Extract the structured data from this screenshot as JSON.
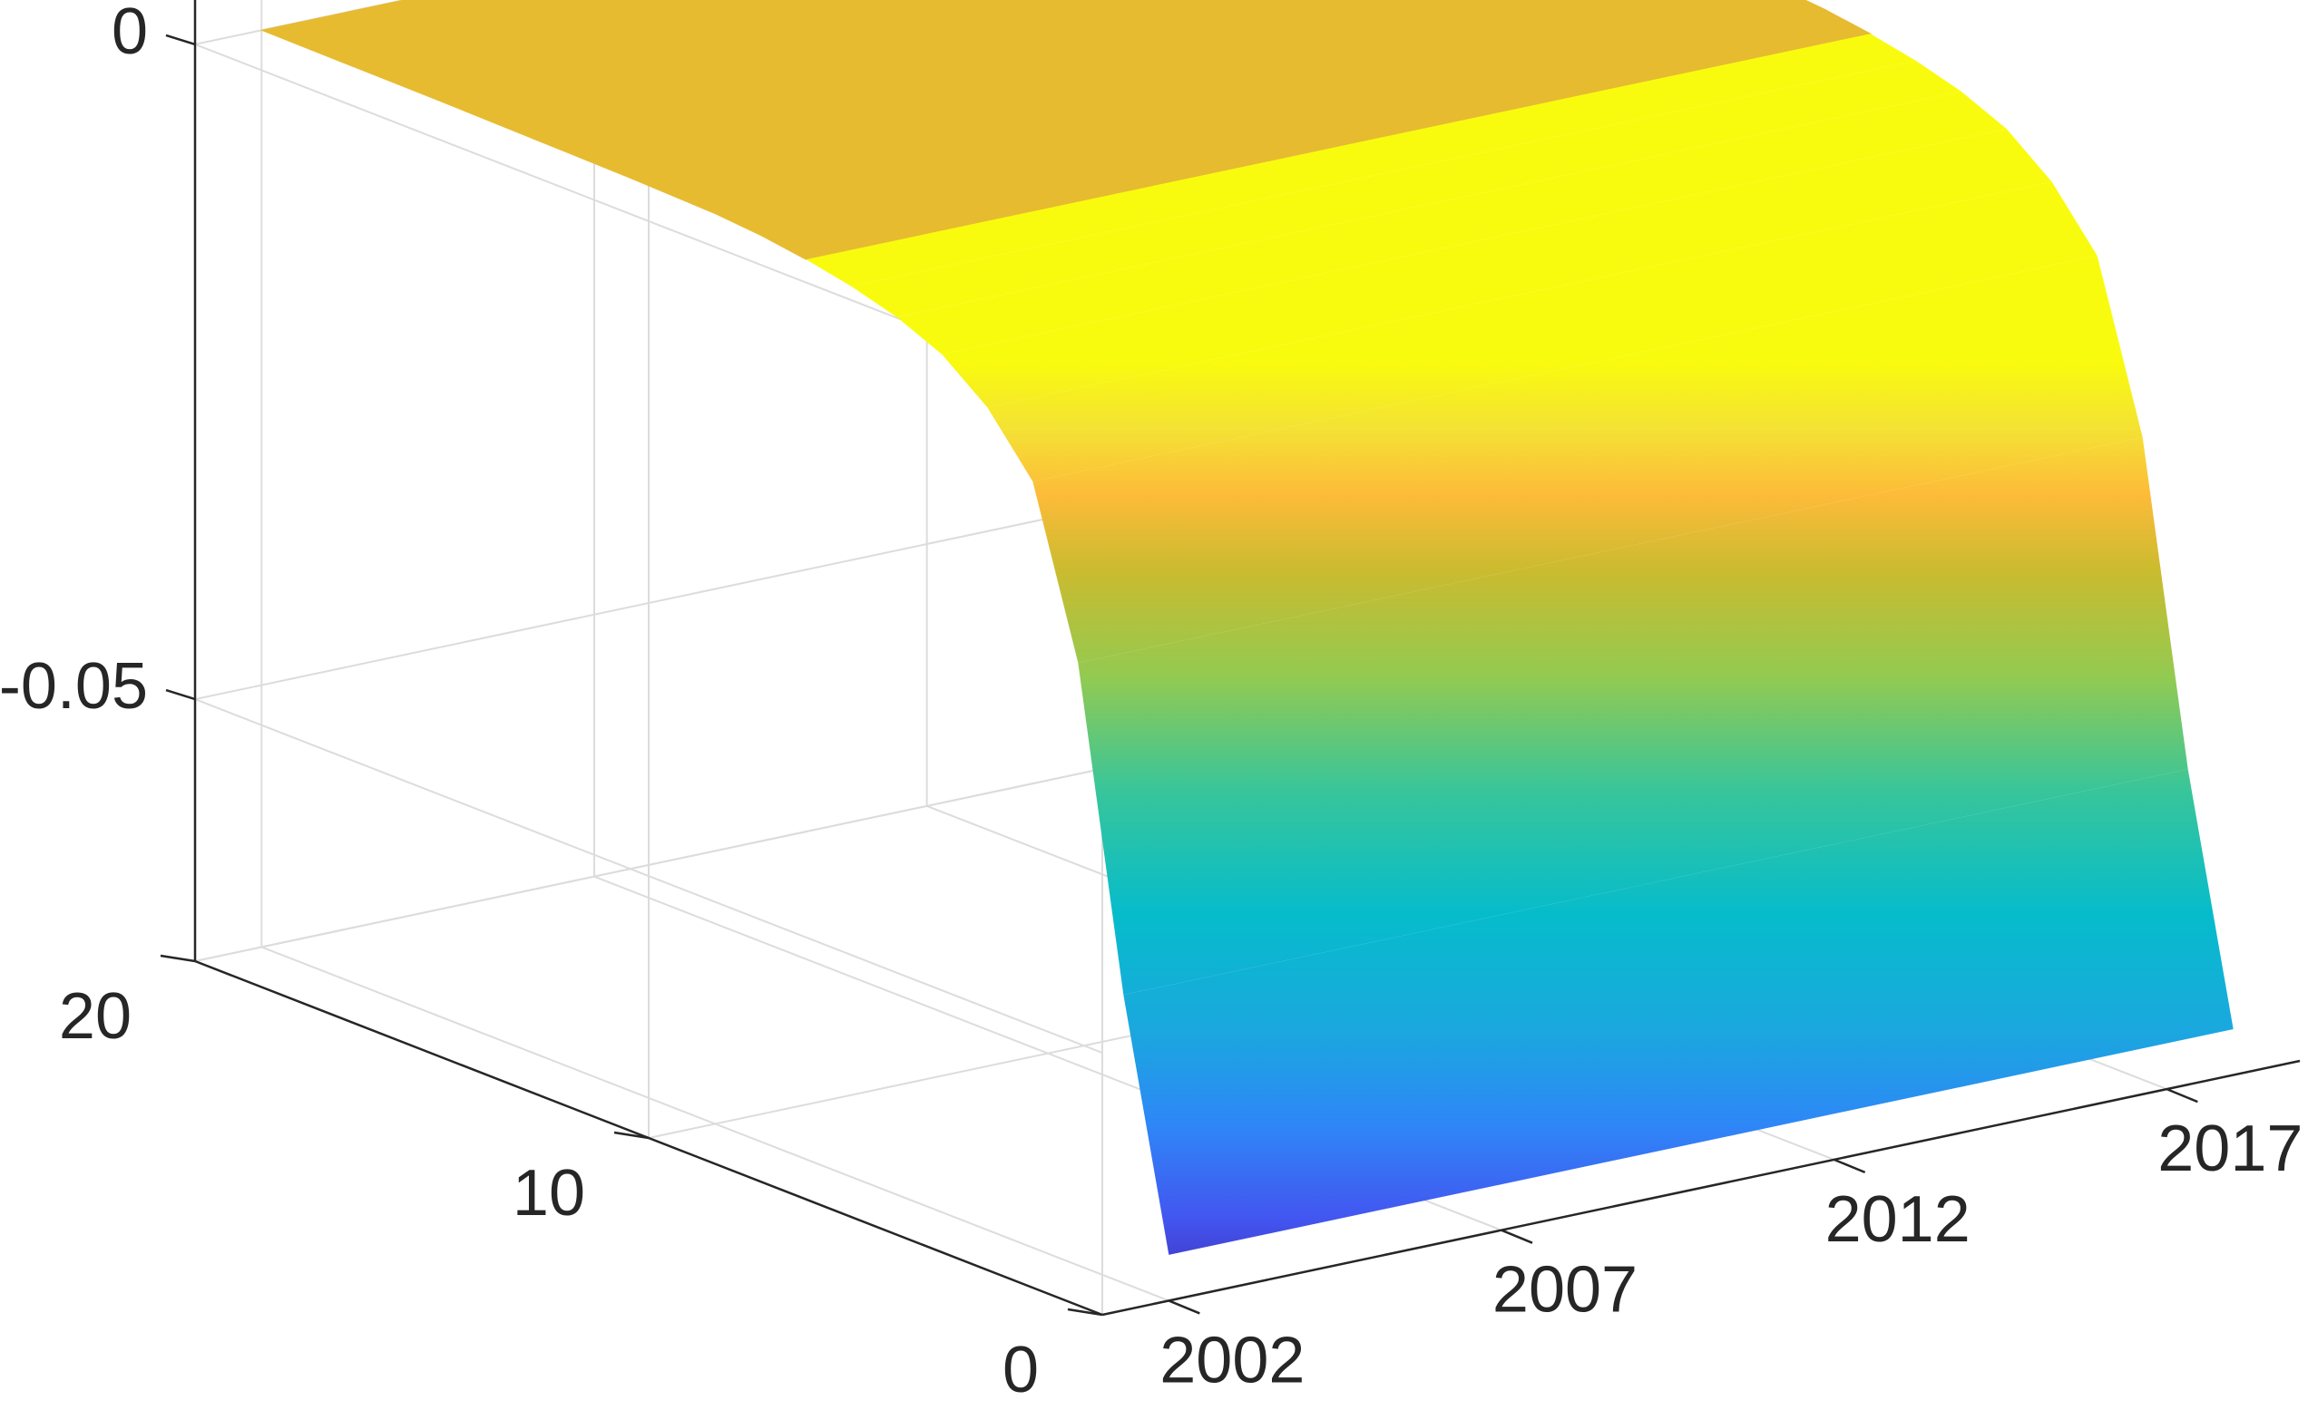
{
  "chart_data": {
    "type": "surface",
    "title": "",
    "xlabel": "",
    "ylabel": "",
    "zlabel": "",
    "x_axis": {
      "ticks": [
        2002,
        2007,
        2012,
        2017
      ],
      "tick_labels": [
        "2002",
        "2007",
        "2012",
        "2017"
      ],
      "range": [
        2001,
        2019
      ]
    },
    "y_axis": {
      "ticks": [
        0,
        10,
        20
      ],
      "tick_labels": [
        "0",
        "10",
        "20"
      ],
      "range": [
        0,
        20
      ]
    },
    "z_axis": {
      "ticks": [
        -0.05,
        0
      ],
      "tick_labels": [
        "-0.05",
        "0"
      ],
      "range": [
        -0.07,
        0.02
      ]
    },
    "grid": true,
    "colormap": "parula",
    "surface_profile": {
      "description_units": "z values along y (maturity) at each x (year); surface is nearly constant in x",
      "y": [
        0,
        1,
        2,
        3,
        4,
        5,
        6,
        7,
        8,
        9,
        10,
        12,
        14,
        16,
        18,
        20
      ],
      "z": [
        -0.0665,
        -0.048,
        -0.024,
        -0.0115,
        -0.0072,
        -0.0045,
        -0.003,
        -0.002,
        -0.0013,
        -0.0008,
        -0.0005,
        -0.0003,
        -0.0002,
        -0.0001,
        -5e-05,
        0.0
      ]
    }
  }
}
